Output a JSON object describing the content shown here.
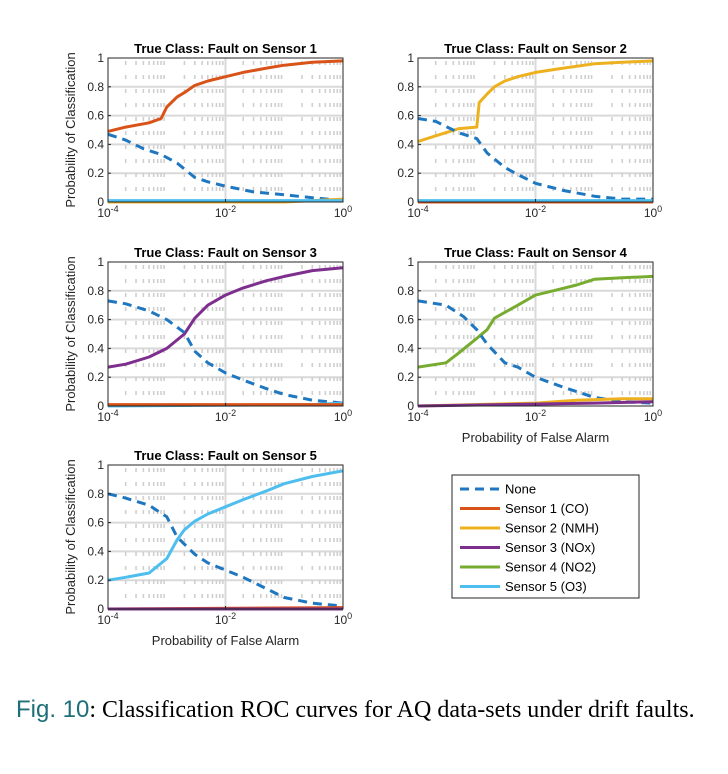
{
  "caption": {
    "label": "Fig. 10",
    "text": ": Classification ROC curves for AQ data-sets under drift faults."
  },
  "chart_data": {
    "type": "line",
    "x_scale": "log",
    "xlim": [
      0.0001,
      1
    ],
    "ylim": [
      0,
      1
    ],
    "x_ticks": [
      "10-4",
      "10-2",
      "100"
    ],
    "y_ticks": [
      "0",
      "0.2",
      "0.4",
      "0.6",
      "0.8",
      "1"
    ],
    "grid": true,
    "legend": {
      "placement": "bottom-right",
      "entries": [
        {
          "name": "None",
          "color": "#1f77c0",
          "style": "dashed"
        },
        {
          "name": "Sensor 1 (CO)",
          "color": "#d95319",
          "style": "solid"
        },
        {
          "name": "Sensor 2 (NMH)",
          "color": "#edb120",
          "style": "solid"
        },
        {
          "name": "Sensor 3 (NOx)",
          "color": "#7e2f8e",
          "style": "solid"
        },
        {
          "name": "Sensor 4 (NO2)",
          "color": "#77ac30",
          "style": "solid"
        },
        {
          "name": "Sensor 5 (O3)",
          "color": "#4dbeee",
          "style": "solid"
        }
      ]
    },
    "panels": [
      {
        "title": "True Class: Fault on Sensor 1",
        "ylabel": "Probability of Classification",
        "xlabel": "",
        "series": [
          {
            "name": "Sensor 1 (CO)",
            "points": [
              [
                0.0001,
                0.49
              ],
              [
                0.0002,
                0.52
              ],
              [
                0.0005,
                0.55
              ],
              [
                0.0008,
                0.58
              ],
              [
                0.001,
                0.66
              ],
              [
                0.0015,
                0.73
              ],
              [
                0.002,
                0.76
              ],
              [
                0.003,
                0.81
              ],
              [
                0.005,
                0.84
              ],
              [
                0.01,
                0.87
              ],
              [
                0.02,
                0.9
              ],
              [
                0.05,
                0.93
              ],
              [
                0.1,
                0.95
              ],
              [
                0.3,
                0.97
              ],
              [
                1,
                0.98
              ]
            ]
          },
          {
            "name": "None",
            "points": [
              [
                0.0001,
                0.47
              ],
              [
                0.0002,
                0.43
              ],
              [
                0.0004,
                0.37
              ],
              [
                0.0008,
                0.33
              ],
              [
                0.0015,
                0.27
              ],
              [
                0.003,
                0.17
              ],
              [
                0.005,
                0.14
              ],
              [
                0.01,
                0.11
              ],
              [
                0.03,
                0.07
              ],
              [
                0.1,
                0.05
              ],
              [
                0.3,
                0.03
              ],
              [
                1,
                0.01
              ]
            ]
          },
          {
            "name": "Sensor 2 (NMH)",
            "points": [
              [
                0.0001,
                0.0
              ],
              [
                0.1,
                0.0
              ],
              [
                0.3,
                0.01
              ],
              [
                1,
                0.02
              ]
            ]
          },
          {
            "name": "Sensor 5 (O3)",
            "points": [
              [
                0.0001,
                0.01
              ],
              [
                1,
                0.01
              ]
            ]
          }
        ]
      },
      {
        "title": "True Class: Fault on Sensor 2",
        "ylabel": "",
        "xlabel": "",
        "series": [
          {
            "name": "Sensor 2 (NMH)",
            "points": [
              [
                0.0001,
                0.42
              ],
              [
                0.0002,
                0.46
              ],
              [
                0.0005,
                0.51
              ],
              [
                0.001,
                0.52
              ],
              [
                0.0011,
                0.69
              ],
              [
                0.0015,
                0.75
              ],
              [
                0.002,
                0.8
              ],
              [
                0.003,
                0.84
              ],
              [
                0.005,
                0.87
              ],
              [
                0.01,
                0.9
              ],
              [
                0.03,
                0.93
              ],
              [
                0.1,
                0.96
              ],
              [
                0.3,
                0.97
              ],
              [
                1,
                0.98
              ]
            ]
          },
          {
            "name": "None",
            "points": [
              [
                0.0001,
                0.58
              ],
              [
                0.0002,
                0.56
              ],
              [
                0.0005,
                0.48
              ],
              [
                0.001,
                0.44
              ],
              [
                0.0015,
                0.34
              ],
              [
                0.003,
                0.24
              ],
              [
                0.005,
                0.19
              ],
              [
                0.01,
                0.13
              ],
              [
                0.03,
                0.08
              ],
              [
                0.1,
                0.04
              ],
              [
                0.3,
                0.02
              ],
              [
                1,
                0.02
              ]
            ]
          },
          {
            "name": "Sensor 1 (CO)",
            "points": [
              [
                0.0001,
                0.0
              ],
              [
                1,
                0.0
              ]
            ]
          },
          {
            "name": "Sensor 5 (O3)",
            "points": [
              [
                0.0001,
                0.01
              ],
              [
                1,
                0.01
              ]
            ]
          }
        ]
      },
      {
        "title": "True Class: Fault on Sensor 3",
        "ylabel": "Probability of Classification",
        "xlabel": "",
        "series": [
          {
            "name": "Sensor 3 (NOx)",
            "points": [
              [
                0.0001,
                0.27
              ],
              [
                0.0002,
                0.29
              ],
              [
                0.0005,
                0.34
              ],
              [
                0.001,
                0.4
              ],
              [
                0.002,
                0.5
              ],
              [
                0.003,
                0.61
              ],
              [
                0.005,
                0.7
              ],
              [
                0.01,
                0.77
              ],
              [
                0.02,
                0.82
              ],
              [
                0.05,
                0.87
              ],
              [
                0.1,
                0.9
              ],
              [
                0.3,
                0.94
              ],
              [
                1,
                0.96
              ]
            ]
          },
          {
            "name": "None",
            "points": [
              [
                0.0001,
                0.73
              ],
              [
                0.0002,
                0.71
              ],
              [
                0.0005,
                0.66
              ],
              [
                0.001,
                0.6
              ],
              [
                0.002,
                0.51
              ],
              [
                0.003,
                0.38
              ],
              [
                0.005,
                0.3
              ],
              [
                0.01,
                0.23
              ],
              [
                0.02,
                0.18
              ],
              [
                0.05,
                0.12
              ],
              [
                0.1,
                0.08
              ],
              [
                0.3,
                0.04
              ],
              [
                1,
                0.02
              ]
            ]
          },
          {
            "name": "Sensor 5 (O3)",
            "points": [
              [
                0.0001,
                0.0
              ],
              [
                0.3,
                0.01
              ],
              [
                1,
                0.02
              ]
            ]
          },
          {
            "name": "Sensor 1 (CO)",
            "points": [
              [
                0.0001,
                0.01
              ],
              [
                1,
                0.01
              ]
            ]
          }
        ]
      },
      {
        "title": "True Class: Fault on Sensor 4",
        "ylabel": "",
        "xlabel": "Probability of False Alarm",
        "series": [
          {
            "name": "Sensor 4 (NO2)",
            "points": [
              [
                0.0001,
                0.27
              ],
              [
                0.0003,
                0.3
              ],
              [
                0.0005,
                0.37
              ],
              [
                0.001,
                0.47
              ],
              [
                0.0015,
                0.53
              ],
              [
                0.002,
                0.61
              ],
              [
                0.005,
                0.7
              ],
              [
                0.01,
                0.77
              ],
              [
                0.02,
                0.8
              ],
              [
                0.05,
                0.84
              ],
              [
                0.1,
                0.88
              ],
              [
                0.3,
                0.89
              ],
              [
                1,
                0.9
              ]
            ]
          },
          {
            "name": "None",
            "points": [
              [
                0.0001,
                0.73
              ],
              [
                0.0003,
                0.7
              ],
              [
                0.0006,
                0.62
              ],
              [
                0.001,
                0.53
              ],
              [
                0.0015,
                0.43
              ],
              [
                0.003,
                0.3
              ],
              [
                0.005,
                0.27
              ],
              [
                0.01,
                0.2
              ],
              [
                0.03,
                0.13
              ],
              [
                0.1,
                0.06
              ],
              [
                0.3,
                0.03
              ],
              [
                1,
                0.02
              ]
            ]
          },
          {
            "name": "Sensor 2 (NMH)",
            "points": [
              [
                0.0001,
                0.0
              ],
              [
                0.01,
                0.02
              ],
              [
                0.05,
                0.04
              ],
              [
                0.3,
                0.05
              ],
              [
                1,
                0.05
              ]
            ]
          },
          {
            "name": "Sensor 3 (NOx)",
            "points": [
              [
                0.0001,
                0.0
              ],
              [
                0.1,
                0.02
              ],
              [
                1,
                0.03
              ]
            ]
          }
        ]
      },
      {
        "title": "True Class: Fault on Sensor 5",
        "ylabel": "Probability of Classification",
        "xlabel": "Probability of False Alarm",
        "series": [
          {
            "name": "Sensor 5 (O3)",
            "points": [
              [
                0.0001,
                0.2
              ],
              [
                0.0002,
                0.22
              ],
              [
                0.0005,
                0.25
              ],
              [
                0.001,
                0.35
              ],
              [
                0.0015,
                0.48
              ],
              [
                0.002,
                0.55
              ],
              [
                0.003,
                0.61
              ],
              [
                0.005,
                0.66
              ],
              [
                0.01,
                0.71
              ],
              [
                0.02,
                0.76
              ],
              [
                0.05,
                0.82
              ],
              [
                0.1,
                0.87
              ],
              [
                0.3,
                0.92
              ],
              [
                1,
                0.96
              ]
            ]
          },
          {
            "name": "None",
            "points": [
              [
                0.0001,
                0.8
              ],
              [
                0.0002,
                0.77
              ],
              [
                0.0005,
                0.72
              ],
              [
                0.001,
                0.64
              ],
              [
                0.0015,
                0.5
              ],
              [
                0.002,
                0.45
              ],
              [
                0.003,
                0.38
              ],
              [
                0.005,
                0.32
              ],
              [
                0.01,
                0.27
              ],
              [
                0.02,
                0.22
              ],
              [
                0.05,
                0.14
              ],
              [
                0.1,
                0.08
              ],
              [
                0.3,
                0.04
              ],
              [
                1,
                0.02
              ]
            ]
          },
          {
            "name": "Sensor 1 (CO)",
            "points": [
              [
                0.0001,
                0.0
              ],
              [
                1,
                0.01
              ]
            ]
          },
          {
            "name": "Sensor 3 (NOx)",
            "points": [
              [
                0.0001,
                0.0
              ],
              [
                1,
                0.0
              ]
            ]
          }
        ]
      }
    ]
  }
}
